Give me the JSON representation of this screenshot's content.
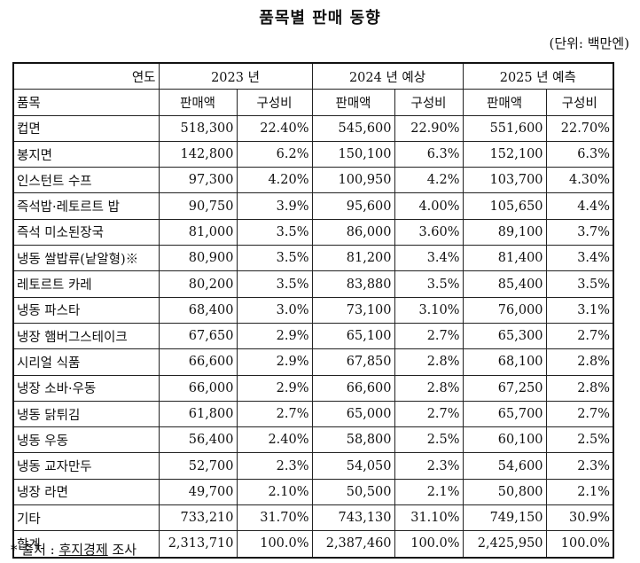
{
  "title": "품목별 판매 동향",
  "unit": "(단위: 백만엔)",
  "header": {
    "year_label": "연도",
    "item_label": "품목",
    "years": [
      "2023 년",
      "2024 년 예상",
      "2025 년 예측"
    ],
    "sales": "판매액",
    "share": "구성비"
  },
  "rows": [
    {
      "item": "컵면",
      "v": [
        "518,300",
        "22.40%",
        "545,600",
        "22.90%",
        "551,600",
        "22.70%"
      ]
    },
    {
      "item": "봉지면",
      "v": [
        "142,800",
        "6.2%",
        "150,100",
        "6.3%",
        "152,100",
        "6.3%"
      ]
    },
    {
      "item": "인스턴트 수프",
      "v": [
        "97,300",
        "4.20%",
        "100,950",
        "4.2%",
        "103,700",
        "4.30%"
      ]
    },
    {
      "item": "즉석밥·레토르트 밥",
      "v": [
        "90,750",
        "3.9%",
        "95,600",
        "4.00%",
        "105,650",
        "4.4%"
      ]
    },
    {
      "item": "즉석 미소된장국",
      "v": [
        "81,000",
        "3.5%",
        "86,000",
        "3.60%",
        "89,100",
        "3.7%"
      ]
    },
    {
      "item": "냉동 쌀밥류(낱알형)※",
      "v": [
        "80,900",
        "3.5%",
        "81,200",
        "3.4%",
        "81,400",
        "3.4%"
      ]
    },
    {
      "item": "레토르트 카레",
      "v": [
        "80,200",
        "3.5%",
        "83,880",
        "3.5%",
        "85,400",
        "3.5%"
      ]
    },
    {
      "item": "냉동 파스타",
      "v": [
        "68,400",
        "3.0%",
        "73,100",
        "3.10%",
        "76,000",
        "3.1%"
      ]
    },
    {
      "item": "냉장 햄버그스테이크",
      "v": [
        "67,650",
        "2.9%",
        "65,100",
        "2.7%",
        "65,300",
        "2.7%"
      ]
    },
    {
      "item": "시리얼 식품",
      "v": [
        "66,600",
        "2.9%",
        "67,850",
        "2.8%",
        "68,100",
        "2.8%"
      ]
    },
    {
      "item": "냉장 소바·우동",
      "v": [
        "66,000",
        "2.9%",
        "66,600",
        "2.8%",
        "67,250",
        "2.8%"
      ]
    },
    {
      "item": "냉동 닭튀김",
      "v": [
        "61,800",
        "2.7%",
        "65,000",
        "2.7%",
        "65,700",
        "2.7%"
      ]
    },
    {
      "item": "냉동 우동",
      "v": [
        "56,400",
        "2.40%",
        "58,800",
        "2.5%",
        "60,100",
        "2.5%"
      ]
    },
    {
      "item": "냉동 교자만두",
      "v": [
        "52,700",
        "2.3%",
        "54,050",
        "2.3%",
        "54,600",
        "2.3%"
      ]
    },
    {
      "item": "냉장 라면",
      "v": [
        "49,700",
        "2.10%",
        "50,500",
        "2.1%",
        "50,800",
        "2.1%"
      ]
    },
    {
      "item": "기타",
      "v": [
        "733,210",
        "31.70%",
        "743,130",
        "31.10%",
        "749,150",
        "30.9%"
      ]
    },
    {
      "item": "합계",
      "v": [
        "2,313,710",
        "100.0%",
        "2,387,460",
        "100.0%",
        "2,425,950",
        "100.0%"
      ]
    }
  ],
  "source": {
    "prefix": "*  출처 : ",
    "name": "후지경제",
    "suffix": " 조사"
  }
}
